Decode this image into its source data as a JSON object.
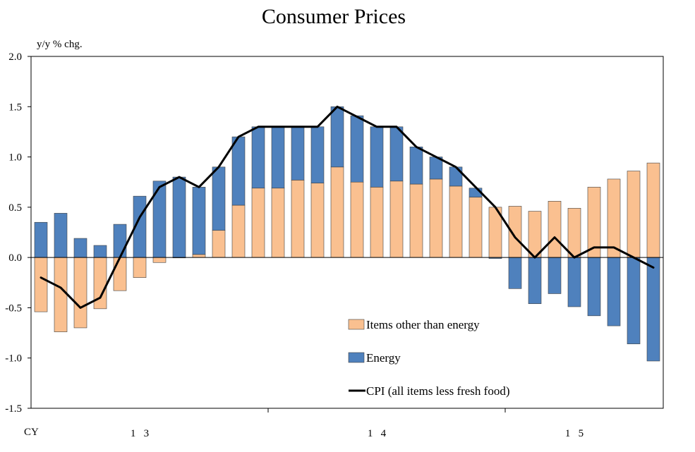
{
  "chart_data": {
    "type": "bar",
    "title": "Consumer Prices",
    "ylabel": "y/y % chg.",
    "ylim": [
      -1.5,
      2.0
    ],
    "yticks": [
      2.0,
      1.5,
      1.0,
      0.5,
      0.0,
      -0.5,
      -1.0,
      -1.5
    ],
    "ytick_labels": [
      "2.0",
      "1.5",
      "1.0",
      "0.5",
      "0.0",
      "-0.5",
      "-1.0",
      "-1.5"
    ],
    "xaxis": {
      "prefix": "CY",
      "year_labels": [
        {
          "label": "1 3",
          "at_index": 5
        },
        {
          "label": "1 4",
          "at_index": 17
        },
        {
          "label": "1 5",
          "at_index": 27
        }
      ],
      "year_boundaries": [
        11.5,
        23.5
      ]
    },
    "legend": {
      "placement": "bottom-right",
      "entries": [
        "Items other than energy",
        "Energy",
        "CPI (all items less fresh food)"
      ]
    },
    "colors": {
      "other": "#FAC090",
      "energy": "#4F81BD",
      "cpi": "#000000",
      "bar_stroke": "#404040"
    },
    "series": [
      {
        "name": "Items other than energy",
        "kind": "bar",
        "values": [
          -0.54,
          -0.74,
          -0.7,
          -0.51,
          -0.33,
          -0.2,
          -0.05,
          0.0,
          0.03,
          0.27,
          0.52,
          0.69,
          0.69,
          0.77,
          0.74,
          0.9,
          0.75,
          0.7,
          0.76,
          0.73,
          0.78,
          0.71,
          0.6,
          0.5,
          0.51,
          0.46,
          0.56,
          0.49,
          0.7,
          0.78,
          0.86,
          0.94
        ]
      },
      {
        "name": "Energy",
        "kind": "bar",
        "values": [
          0.35,
          0.44,
          0.19,
          0.12,
          0.33,
          0.61,
          0.76,
          0.8,
          0.67,
          0.63,
          0.68,
          0.61,
          0.61,
          0.53,
          0.56,
          0.6,
          0.66,
          0.6,
          0.54,
          0.37,
          0.22,
          0.19,
          0.09,
          -0.01,
          -0.31,
          -0.46,
          -0.36,
          -0.49,
          -0.58,
          -0.68,
          -0.86,
          -1.03
        ]
      },
      {
        "name": "CPI (all items less fresh food)",
        "kind": "line",
        "values": [
          -0.2,
          -0.3,
          -0.5,
          -0.4,
          0.0,
          0.4,
          0.7,
          0.8,
          0.7,
          0.9,
          1.2,
          1.3,
          1.3,
          1.3,
          1.3,
          1.5,
          1.4,
          1.3,
          1.3,
          1.1,
          1.0,
          0.9,
          0.7,
          0.5,
          0.2,
          0.0,
          0.2,
          0.0,
          0.1,
          0.1,
          0.0,
          -0.1
        ]
      }
    ]
  }
}
